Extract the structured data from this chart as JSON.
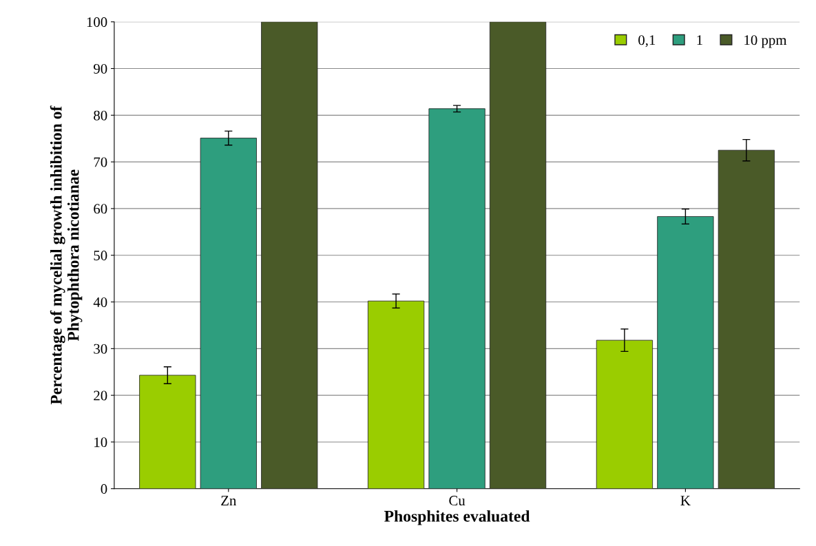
{
  "chart_data": {
    "type": "bar",
    "xlabel": "Phosphites evaluated",
    "ylabel": "Percentage of mycelial growth inhibition of\nPhytophthora nicotianae",
    "categories": [
      "Zn",
      "Cu",
      "K"
    ],
    "series": [
      {
        "name": "0,1",
        "color": "#9acd00",
        "values": [
          24.3,
          40.2,
          31.8
        ],
        "errors": [
          1.8,
          1.5,
          2.4
        ]
      },
      {
        "name": "1",
        "color": "#2e9e7e",
        "values": [
          75.1,
          81.4,
          58.3
        ],
        "errors": [
          1.5,
          0.7,
          1.6
        ]
      },
      {
        "name": "10 ppm",
        "color": "#4a5a28",
        "values": [
          100,
          100,
          72.5
        ],
        "errors": [
          null,
          null,
          2.3
        ]
      }
    ],
    "ylim": [
      0,
      100
    ],
    "yticks": [
      0,
      10,
      20,
      30,
      40,
      50,
      60,
      70,
      80,
      90,
      100
    ],
    "grid": "y",
    "legend": "top right"
  }
}
